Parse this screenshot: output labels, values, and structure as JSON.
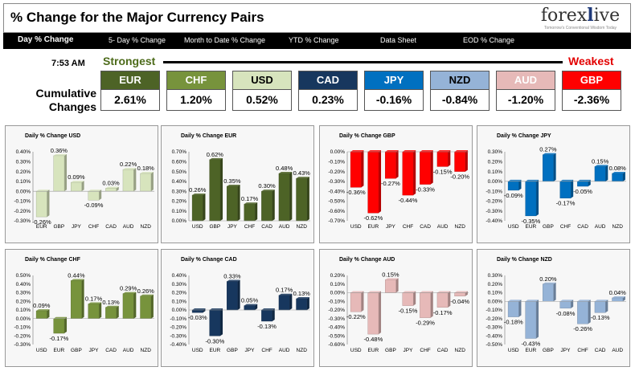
{
  "header": {
    "title": "% Change for the Major Currency Pairs",
    "logo_main": "forex",
    "logo_x": "l",
    "logo_end": "ive",
    "logo_tagline": "Tomorrow's Conventional Wisdom Today"
  },
  "nav": [
    {
      "label": "Day % Change"
    },
    {
      "label": "5- Day % Change"
    },
    {
      "label": "Month to Date % Change"
    },
    {
      "label": "YTD % Change"
    },
    {
      "label": "Data Sheet"
    },
    {
      "label": "EOD % Change"
    }
  ],
  "summary": {
    "time": "7:53 AM",
    "strongest": "Strongest",
    "weakest": "Weakest",
    "cumulative_label_1": "Cumulative",
    "cumulative_label_2": "Changes",
    "currencies": [
      {
        "name": "EUR",
        "value": "2.61%",
        "color": "#4d6326",
        "text": "#ffffff"
      },
      {
        "name": "CHF",
        "value": "1.20%",
        "color": "#77933c",
        "text": "#ffffff"
      },
      {
        "name": "USD",
        "value": "0.52%",
        "color": "#d7e4bd",
        "text": "#000000"
      },
      {
        "name": "CAD",
        "value": "0.23%",
        "color": "#17375e",
        "text": "#ffffff"
      },
      {
        "name": "JPY",
        "value": "-0.16%",
        "color": "#0070c0",
        "text": "#ffffff"
      },
      {
        "name": "NZD",
        "value": "-0.84%",
        "color": "#95b3d7",
        "text": "#000000"
      },
      {
        "name": "AUD",
        "value": "-1.20%",
        "color": "#e6b9b8",
        "text": "#ffffff"
      },
      {
        "name": "GBP",
        "value": "-2.36%",
        "color": "#ff0000",
        "text": "#ffffff"
      }
    ]
  },
  "chart_data": [
    {
      "type": "bar",
      "title": "Daily % Change USD",
      "categories": [
        "EUR",
        "GBP",
        "JPY",
        "CHF",
        "CAD",
        "AUD",
        "NZD"
      ],
      "values": [
        -0.26,
        0.36,
        0.09,
        -0.09,
        0.03,
        0.22,
        0.18
      ],
      "labels": [
        "-0.26%",
        "0.36%",
        "0.09%",
        "-0.09%",
        "0.03%",
        "0.22%",
        "0.18%"
      ],
      "ylim": [
        -0.3,
        0.4
      ],
      "ticks": [
        "0.40%",
        "0.30%",
        "0.20%",
        "0.10%",
        "0.00%",
        "-0.10%",
        "-0.20%",
        "-0.30%"
      ],
      "color": "#d7e4bd",
      "grid": false
    },
    {
      "type": "bar",
      "title": "Daily % Change EUR",
      "categories": [
        "USD",
        "GBP",
        "JPY",
        "CHF",
        "CAD",
        "AUD",
        "NZD"
      ],
      "values": [
        0.26,
        0.62,
        0.35,
        0.17,
        0.3,
        0.48,
        0.43
      ],
      "labels": [
        "0.26%",
        "0.62%",
        "0.35%",
        "0.17%",
        "0.30%",
        "0.48%",
        "0.43%"
      ],
      "ylim": [
        0,
        0.7
      ],
      "ticks": [
        "0.70%",
        "0.60%",
        "0.50%",
        "0.40%",
        "0.30%",
        "0.20%",
        "0.10%",
        "0.00%"
      ],
      "color": "#4d6326",
      "grid": false
    },
    {
      "type": "bar",
      "title": "Daily % Change GBP",
      "categories": [
        "USD",
        "EUR",
        "JPY",
        "CHF",
        "CAD",
        "AUD",
        "NZD"
      ],
      "values": [
        -0.36,
        -0.62,
        -0.27,
        -0.44,
        -0.33,
        -0.15,
        -0.2
      ],
      "labels": [
        "-0.36%",
        "-0.62%",
        "-0.27%",
        "-0.44%",
        "-0.33%",
        "-0.15%",
        "-0.20%"
      ],
      "ylim": [
        -0.7,
        0
      ],
      "ticks": [
        "0.00%",
        "-0.10%",
        "-0.20%",
        "-0.30%",
        "-0.40%",
        "-0.50%",
        "-0.60%",
        "-0.70%"
      ],
      "color": "#ff0000",
      "grid": false
    },
    {
      "type": "bar",
      "title": "Daily % Change JPY",
      "categories": [
        "USD",
        "EUR",
        "GBP",
        "CHF",
        "CAD",
        "AUD",
        "NZD"
      ],
      "values": [
        -0.09,
        -0.35,
        0.27,
        -0.17,
        -0.05,
        0.15,
        0.08
      ],
      "labels": [
        "-0.09%",
        "-0.35%",
        "0.27%",
        "-0.17%",
        "-0.05%",
        "0.15%",
        "0.08%"
      ],
      "ylim": [
        -0.4,
        0.3
      ],
      "ticks": [
        "0.30%",
        "0.20%",
        "0.10%",
        "0.00%",
        "-0.10%",
        "-0.20%",
        "-0.30%",
        "-0.40%"
      ],
      "color": "#0070c0",
      "grid": false
    },
    {
      "type": "bar",
      "title": "Daily % Change CHF",
      "categories": [
        "USD",
        "EUR",
        "GBP",
        "JPY",
        "CAD",
        "AUD",
        "NZD"
      ],
      "values": [
        0.09,
        -0.17,
        0.44,
        0.17,
        0.13,
        0.29,
        0.26
      ],
      "labels": [
        "0.09%",
        "-0.17%",
        "0.44%",
        "0.17%",
        "0.13%",
        "0.29%",
        "0.26%"
      ],
      "ylim": [
        -0.3,
        0.5
      ],
      "ticks": [
        "0.50%",
        "0.40%",
        "0.30%",
        "0.20%",
        "0.10%",
        "0.00%",
        "-0.10%",
        "-0.20%",
        "-0.30%"
      ],
      "color": "#77933c",
      "grid": false
    },
    {
      "type": "bar",
      "title": "Daily % Change CAD",
      "categories": [
        "USD",
        "EUR",
        "GBP",
        "JPY",
        "CHF",
        "AUD",
        "NZD"
      ],
      "values": [
        -0.03,
        -0.3,
        0.33,
        0.05,
        -0.13,
        0.17,
        0.13
      ],
      "labels": [
        "-0.03%",
        "-0.30%",
        "0.33%",
        "0.05%",
        "-0.13%",
        "0.17%",
        "0.13%"
      ],
      "ylim": [
        -0.4,
        0.4
      ],
      "ticks": [
        "0.40%",
        "0.30%",
        "0.20%",
        "0.10%",
        "0.00%",
        "-0.10%",
        "-0.20%",
        "-0.30%",
        "-0.40%"
      ],
      "color": "#17375e",
      "grid": false
    },
    {
      "type": "bar",
      "title": "Daily % Change AUD",
      "categories": [
        "USD",
        "EUR",
        "GBP",
        "JPY",
        "CHF",
        "CAD",
        "NZD"
      ],
      "values": [
        -0.22,
        -0.48,
        0.15,
        -0.15,
        -0.29,
        -0.17,
        -0.04
      ],
      "labels": [
        "-0.22%",
        "-0.48%",
        "0.15%",
        "-0.15%",
        "-0.29%",
        "-0.17%",
        "-0.04%"
      ],
      "ylim": [
        -0.6,
        0.2
      ],
      "ticks": [
        "0.20%",
        "0.10%",
        "0.00%",
        "-0.10%",
        "-0.20%",
        "-0.30%",
        "-0.40%",
        "-0.50%",
        "-0.60%"
      ],
      "color": "#e6b9b8",
      "grid": false
    },
    {
      "type": "bar",
      "title": "Daily % Change NZD",
      "categories": [
        "USD",
        "EUR",
        "GBP",
        "JPY",
        "CHF",
        "CAD",
        "AUD"
      ],
      "values": [
        -0.18,
        -0.43,
        0.2,
        -0.08,
        -0.26,
        -0.13,
        0.04
      ],
      "labels": [
        "-0.18%",
        "-0.43%",
        "0.20%",
        "-0.08%",
        "-0.26%",
        "-0.13%",
        "0.04%"
      ],
      "ylim": [
        -0.5,
        0.3
      ],
      "ticks": [
        "0.30%",
        "0.20%",
        "0.10%",
        "0.00%",
        "-0.10%",
        "-0.20%",
        "-0.30%",
        "-0.40%",
        "-0.50%"
      ],
      "color": "#95b3d7",
      "grid": false
    }
  ]
}
